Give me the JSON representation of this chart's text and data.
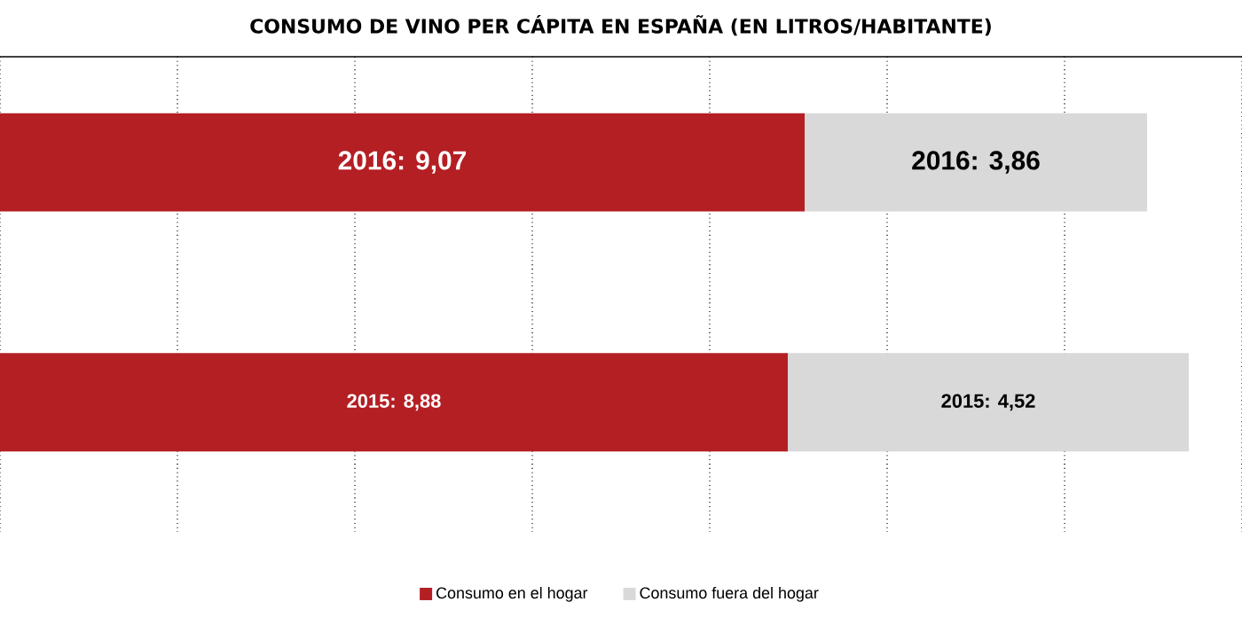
{
  "chart_data": {
    "type": "bar",
    "orientation": "horizontal",
    "stacked": true,
    "title": "CONSUMO DE VINO PER CÁPITA EN ESPAÑA (EN LITROS/HABITANTE)",
    "categories": [
      null,
      null
    ],
    "series": [
      {
        "name": "Consumo en el hogar",
        "color": "#b41f24",
        "values": [
          9.07,
          8.88
        ],
        "value_labels": [
          "2016: 9,07",
          "2015: 8,88"
        ]
      },
      {
        "name": "Consumo fuera del hogar",
        "color": "#d9d9d9",
        "values": [
          3.86,
          4.52
        ],
        "value_labels": [
          "2016: 3,86",
          "2015: 4,52"
        ]
      }
    ],
    "xlim": [
      0,
      14
    ],
    "xticks": [
      {
        "value": 0,
        "label": null
      },
      {
        "value": 2,
        "label": null
      },
      {
        "value": 4,
        "label": null
      },
      {
        "value": 6,
        "label": null
      },
      {
        "value": 8,
        "label": null
      },
      {
        "value": 10,
        "label": null
      },
      {
        "value": 12,
        "label": null
      },
      {
        "value": 14,
        "label": null
      }
    ],
    "grid": "x",
    "legend": "bottom"
  }
}
